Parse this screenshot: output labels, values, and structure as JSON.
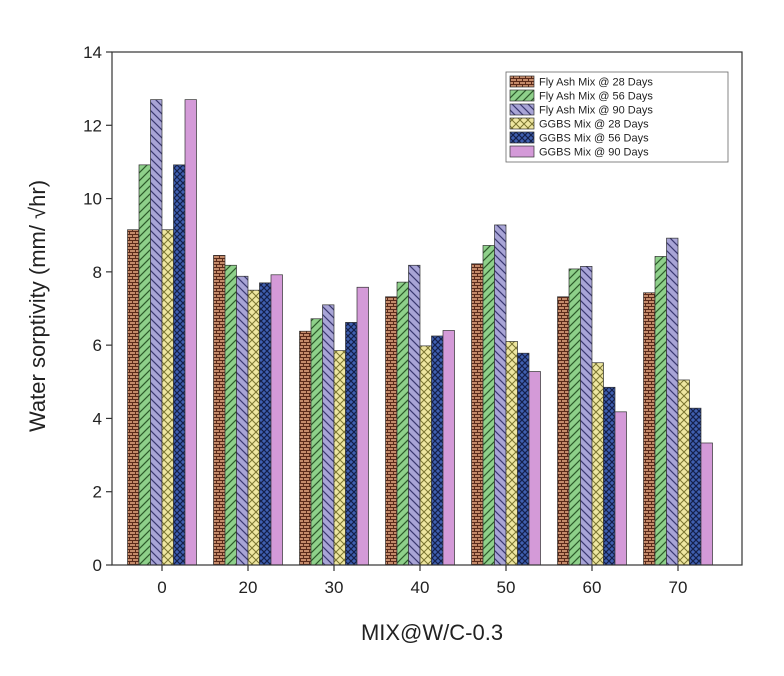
{
  "chart_data": {
    "type": "bar",
    "title": "",
    "xlabel": "MIX@W/C-0.3",
    "ylabel": "Water sorptivity (mm/ √hr)",
    "categories": [
      "0",
      "20",
      "30",
      "40",
      "50",
      "60",
      "70"
    ],
    "ylim": [
      0,
      14
    ],
    "yticks": [
      0,
      2,
      4,
      6,
      8,
      10,
      12,
      14
    ],
    "grid": false,
    "legend_position": "top-right",
    "series": [
      {
        "name": "Fly Ash Mix @ 28  Days",
        "values": [
          9.15,
          8.45,
          6.38,
          7.32,
          8.22,
          7.32,
          7.43
        ],
        "color": "#c48a6a",
        "pattern": "brick"
      },
      {
        "name": "Fly Ash Mix @ 56  Days",
        "values": [
          10.92,
          8.18,
          6.72,
          7.72,
          8.72,
          8.08,
          8.42
        ],
        "color": "#8ed08a",
        "pattern": "diag-forward"
      },
      {
        "name": "Fly Ash Mix @ 90 Days",
        "values": [
          12.7,
          7.88,
          7.1,
          8.18,
          9.28,
          8.15,
          8.92
        ],
        "color": "#a8a4d6",
        "pattern": "diag-back"
      },
      {
        "name": "GGBS Mix @ 28  Days",
        "values": [
          9.15,
          7.5,
          5.85,
          5.98,
          6.1,
          5.52,
          5.05
        ],
        "color": "#eee6a0",
        "pattern": "cross"
      },
      {
        "name": "GGBS Mix @ 56  Days",
        "values": [
          10.92,
          7.7,
          6.62,
          6.25,
          5.78,
          4.85,
          4.28
        ],
        "color": "#3f5fb0",
        "pattern": "checker"
      },
      {
        "name": "GGBS Mix @ 90 Days",
        "values": [
          12.7,
          7.92,
          7.58,
          6.4,
          5.28,
          4.18,
          3.33
        ],
        "color": "#d49ad8",
        "pattern": "solid"
      }
    ]
  }
}
